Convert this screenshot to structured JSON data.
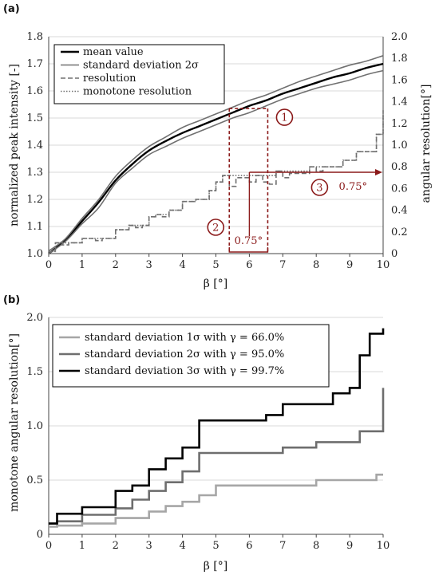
{
  "chart_data": [
    {
      "panel_label": "(a)",
      "type": "line",
      "xlabel": "β [°]",
      "ylabel_left": "normalized peak intensity [-]",
      "ylabel_right": "angular resolution[°]",
      "xlim": [
        0,
        10
      ],
      "ylim_left": [
        1.0,
        1.8
      ],
      "ylim_right": [
        0,
        2.0
      ],
      "xticks": [
        "0",
        "1",
        "2",
        "3",
        "4",
        "5",
        "6",
        "7",
        "8",
        "9",
        "10"
      ],
      "yticks_left": [
        "1.0",
        "1.1",
        "1.2",
        "1.3",
        "1.4",
        "1.5",
        "1.6",
        "1.7",
        "1.8"
      ],
      "yticks_right": [
        "0",
        "0.2",
        "0.4",
        "0.6",
        "0.8",
        "1.0",
        "1.2",
        "1.4",
        "1.6",
        "1.8",
        "2.0"
      ],
      "grid": "horizontal",
      "legend": "top-left",
      "series": [
        {
          "name": "mean value",
          "axis": "left",
          "color": "#000000",
          "style": "solid",
          "x": [
            0,
            0.5,
            1,
            1.5,
            2,
            2.5,
            3,
            3.5,
            4,
            4.5,
            5,
            5.5,
            6,
            6.5,
            7,
            7.5,
            8,
            8.5,
            9,
            9.5,
            10
          ],
          "y": [
            1.0,
            1.05,
            1.12,
            1.19,
            1.27,
            1.33,
            1.38,
            1.415,
            1.445,
            1.47,
            1.495,
            1.52,
            1.545,
            1.565,
            1.59,
            1.61,
            1.63,
            1.65,
            1.665,
            1.685,
            1.7
          ]
        },
        {
          "name": "standard deviation 2σ",
          "axis": "left",
          "color": "#707070",
          "style": "solid",
          "x": [
            0,
            0.5,
            1,
            1.5,
            2,
            2.5,
            3,
            3.5,
            4,
            4.5,
            5,
            5.5,
            6,
            6.5,
            7,
            7.5,
            8,
            8.5,
            9,
            9.5,
            10
          ],
          "y": [
            1.01,
            1.055,
            1.13,
            1.2,
            1.285,
            1.345,
            1.395,
            1.43,
            1.465,
            1.49,
            1.515,
            1.54,
            1.565,
            1.585,
            1.61,
            1.635,
            1.655,
            1.675,
            1.695,
            1.71,
            1.73
          ]
        },
        {
          "name": "",
          "axis": "left",
          "color": "#707070",
          "style": "solid",
          "x": [
            0,
            0.5,
            1,
            1.5,
            2,
            2.5,
            3,
            3.5,
            4,
            4.5,
            5,
            5.5,
            6,
            6.5,
            7,
            7.5,
            8,
            8.5,
            9,
            9.5,
            10
          ],
          "y": [
            1.0,
            1.045,
            1.11,
            1.17,
            1.26,
            1.315,
            1.365,
            1.395,
            1.425,
            1.45,
            1.475,
            1.5,
            1.52,
            1.545,
            1.57,
            1.59,
            1.61,
            1.625,
            1.64,
            1.66,
            1.675
          ]
        },
        {
          "name": "resolution",
          "axis": "right",
          "color": "#707070",
          "style": "dashed",
          "x": [
            0,
            0.2,
            0.4,
            0.6,
            0.8,
            1.0,
            1.2,
            1.4,
            1.6,
            1.8,
            2.0,
            2.2,
            2.4,
            2.6,
            2.8,
            3.0,
            3.2,
            3.4,
            3.6,
            3.8,
            4.0,
            4.2,
            4.4,
            4.6,
            4.8,
            5.0,
            5.2,
            5.4,
            5.6,
            5.8,
            6.0,
            6.2,
            6.4,
            6.6,
            6.8,
            7.0,
            7.2,
            7.4,
            7.6,
            7.8,
            8.0,
            8.2,
            8.4,
            8.6,
            8.8,
            9.0,
            9.2,
            9.4,
            9.6,
            9.8,
            10.0
          ],
          "y": [
            0.02,
            0.1,
            0.08,
            0.1,
            0.1,
            0.14,
            0.14,
            0.12,
            0.14,
            0.14,
            0.22,
            0.22,
            0.26,
            0.24,
            0.26,
            0.34,
            0.36,
            0.34,
            0.4,
            0.4,
            0.48,
            0.48,
            0.5,
            0.5,
            0.58,
            0.66,
            0.72,
            0.62,
            0.7,
            0.7,
            0.66,
            0.72,
            0.66,
            0.64,
            0.76,
            0.7,
            0.74,
            0.74,
            0.74,
            0.8,
            0.76,
            0.8,
            0.8,
            0.8,
            0.86,
            0.86,
            0.94,
            0.94,
            0.94,
            1.1,
            1.32
          ]
        },
        {
          "name": "monotone resolution",
          "axis": "right",
          "color": "#707070",
          "style": "dotted",
          "x": [
            0,
            0.2,
            0.4,
            0.6,
            0.8,
            1.0,
            1.2,
            1.4,
            1.6,
            1.8,
            2.0,
            2.2,
            2.4,
            2.6,
            2.8,
            3.0,
            3.2,
            3.4,
            3.6,
            3.8,
            4.0,
            4.2,
            4.4,
            4.6,
            4.8,
            5.0,
            5.2,
            5.4,
            5.6,
            5.8,
            6.0,
            6.2,
            6.4,
            6.6,
            6.8,
            7.0,
            7.2,
            7.4,
            7.6,
            7.8,
            8.0,
            8.2,
            8.4,
            8.6,
            8.8,
            9.0,
            9.2,
            9.4,
            9.6,
            9.8,
            10.0
          ],
          "y": [
            0.02,
            0.1,
            0.1,
            0.1,
            0.1,
            0.14,
            0.14,
            0.14,
            0.14,
            0.14,
            0.22,
            0.22,
            0.26,
            0.26,
            0.26,
            0.34,
            0.36,
            0.36,
            0.4,
            0.4,
            0.48,
            0.48,
            0.5,
            0.5,
            0.58,
            0.66,
            0.72,
            0.72,
            0.72,
            0.72,
            0.72,
            0.72,
            0.72,
            0.72,
            0.76,
            0.76,
            0.76,
            0.76,
            0.76,
            0.8,
            0.8,
            0.8,
            0.8,
            0.8,
            0.86,
            0.86,
            0.94,
            0.94,
            0.94,
            1.1,
            1.32
          ]
        }
      ],
      "annotations": {
        "markers": [
          "1",
          "2",
          "3"
        ],
        "width_label_lower": "0.75°",
        "width_label_right": "0.75°",
        "box_x": [
          5.4,
          6.55
        ],
        "box_y_top": 1.535,
        "line_y_right": 0.75,
        "vertical_x": 6.0
      }
    },
    {
      "panel_label": "(b)",
      "type": "line",
      "xlabel": "β [°]",
      "ylabel": "monotone angular resolution[°]",
      "xlim": [
        0,
        10
      ],
      "ylim": [
        0,
        2.0
      ],
      "xticks": [
        "0",
        "1",
        "2",
        "3",
        "4",
        "5",
        "6",
        "7",
        "8",
        "9",
        "10"
      ],
      "yticks": [
        "0",
        "0.5",
        "1.0",
        "1.5",
        "2.0"
      ],
      "grid": "horizontal",
      "legend": "top-left",
      "series": [
        {
          "name": "standard deviation 1σ with γ = 66.0%",
          "color": "#a6a6a6",
          "x": [
            0,
            0.25,
            1.0,
            2.0,
            3.0,
            3.5,
            4.0,
            4.5,
            5.0,
            8.0,
            9.0,
            9.8,
            10.0
          ],
          "y": [
            0.07,
            0.08,
            0.1,
            0.15,
            0.21,
            0.26,
            0.3,
            0.36,
            0.45,
            0.5,
            0.5,
            0.55,
            0.55
          ]
        },
        {
          "name": "standard deviation 2σ with γ = 95.0%",
          "color": "#6e6e6e",
          "x": [
            0,
            0.25,
            1.0,
            2.0,
            2.5,
            3.0,
            3.5,
            4.0,
            4.5,
            6.0,
            7.0,
            8.0,
            9.0,
            9.3,
            9.7,
            10.0
          ],
          "y": [
            0.1,
            0.12,
            0.18,
            0.24,
            0.32,
            0.4,
            0.48,
            0.58,
            0.75,
            0.75,
            0.8,
            0.85,
            0.85,
            0.95,
            0.95,
            1.35
          ]
        },
        {
          "name": "standard deviation 3σ with γ = 99.7%",
          "color": "#000000",
          "x": [
            0,
            0.25,
            1.0,
            2.0,
            2.5,
            3.0,
            3.5,
            4.0,
            4.5,
            5.5,
            6.5,
            7.0,
            8.0,
            8.5,
            9.0,
            9.3,
            9.6,
            10.0
          ],
          "y": [
            0.1,
            0.19,
            0.25,
            0.4,
            0.45,
            0.6,
            0.7,
            0.8,
            1.05,
            1.05,
            1.1,
            1.2,
            1.2,
            1.3,
            1.35,
            1.65,
            1.85,
            1.9
          ]
        }
      ]
    }
  ]
}
